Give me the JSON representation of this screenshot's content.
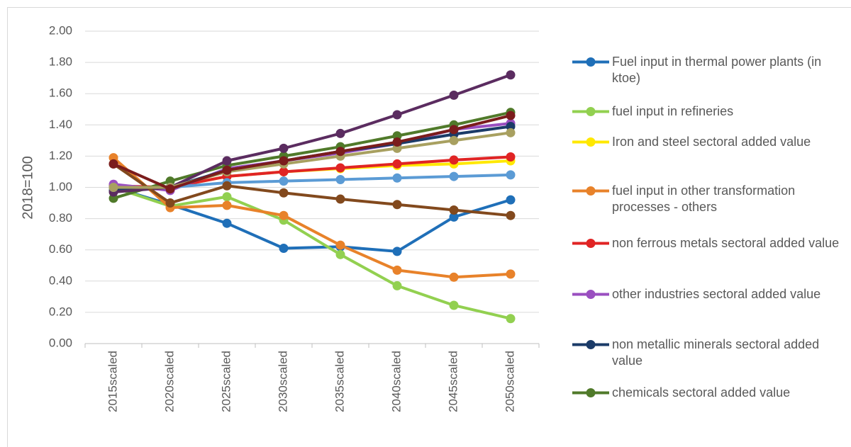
{
  "chart_data": {
    "type": "line",
    "y_label": "2018=100",
    "categories": [
      "2015scaled",
      "2020scaled",
      "2025scaled",
      "2030scaled",
      "2035scaled",
      "2040scaled",
      "2045scaled",
      "2050scaled"
    ],
    "ylim": [
      0,
      2
    ],
    "yticks": [
      {
        "value": 0,
        "label": "0.00"
      },
      {
        "value": 0.2,
        "label": "0.20"
      },
      {
        "value": 0.4,
        "label": "0.40"
      },
      {
        "value": 0.6,
        "label": "0.60"
      },
      {
        "value": 0.8,
        "label": "0.80"
      },
      {
        "value": 1,
        "label": "1.00"
      },
      {
        "value": 1.2,
        "label": "1.20"
      },
      {
        "value": 1.4,
        "label": "1.40"
      },
      {
        "value": 1.6,
        "label": "1.60"
      },
      {
        "value": 1.8,
        "label": "1.80"
      },
      {
        "value": 2,
        "label": "2.00"
      }
    ],
    "grid": true,
    "series": [
      {
        "name": "Fuel input in thermal power plants (in ktoe)",
        "color": "#1f6fb8",
        "values": [
          1.0,
          0.89,
          0.77,
          0.61,
          0.62,
          0.59,
          0.81,
          0.92
        ]
      },
      {
        "name": "fuel input in refineries",
        "color": "#92d050",
        "values": [
          1.0,
          0.88,
          0.94,
          0.79,
          0.57,
          0.37,
          0.245,
          0.16
        ]
      },
      {
        "name": "Iron and steel sectoral added value",
        "color": "#ffe800",
        "values": [
          1.0,
          1.0,
          1.07,
          1.1,
          1.12,
          1.14,
          1.15,
          1.17
        ]
      },
      {
        "name": "fuel input in other transformation processes - others",
        "color": "#e8822a",
        "values": [
          1.19,
          0.87,
          0.885,
          0.82,
          0.63,
          0.47,
          0.425,
          0.445
        ]
      },
      {
        "name": "non ferrous metals sectoral added value",
        "color": "#e02424",
        "values": [
          1.01,
          1.0,
          1.07,
          1.1,
          1.125,
          1.15,
          1.175,
          1.195
        ]
      },
      {
        "name": "other industries sectoral added value",
        "color": "#9a4fc0",
        "values": [
          1.02,
          0.98,
          1.12,
          1.17,
          1.22,
          1.28,
          1.37,
          1.41
        ]
      },
      {
        "name": "non metallic minerals sectoral added value",
        "color": "#1b3b68",
        "values": [
          0.98,
          1.0,
          1.11,
          1.17,
          1.23,
          1.28,
          1.34,
          1.39
        ]
      },
      {
        "name": "chemicals sectoral added value",
        "color": "#507a2a",
        "values": [
          0.93,
          1.04,
          1.14,
          1.2,
          1.26,
          1.33,
          1.4,
          1.48
        ]
      },
      {
        "color": "#5b2c60",
        "values": [
          0.97,
          1.0,
          1.17,
          1.25,
          1.345,
          1.465,
          1.59,
          1.72
        ]
      },
      {
        "color": "#5b9bd5",
        "values": [
          1.0,
          1.0,
          1.03,
          1.04,
          1.05,
          1.06,
          1.07,
          1.08
        ]
      },
      {
        "color": "#82491d",
        "values": [
          1.15,
          0.9,
          1.01,
          0.965,
          0.925,
          0.89,
          0.855,
          0.82
        ]
      },
      {
        "color": "#a8a060",
        "values": [
          1.0,
          1.0,
          1.1,
          1.15,
          1.2,
          1.25,
          1.3,
          1.35
        ]
      },
      {
        "color": "#7b1c1c",
        "values": [
          1.15,
          0.99,
          1.11,
          1.17,
          1.23,
          1.29,
          1.37,
          1.46
        ]
      }
    ]
  }
}
